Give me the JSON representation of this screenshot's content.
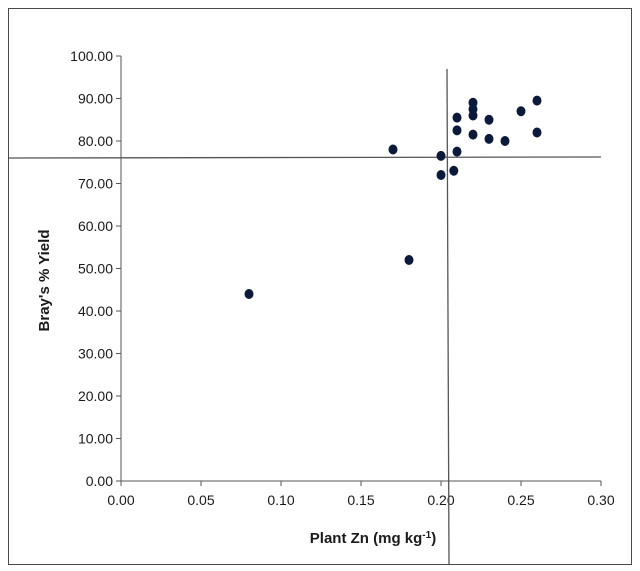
{
  "chart_data": {
    "type": "scatter",
    "xlabel": "Plant Zn (mg kg",
    "xlabel_sup": "-1",
    "xlabel_close": ")",
    "ylabel": "Bray's % Yield",
    "xlim": [
      0.0,
      0.3
    ],
    "ylim": [
      0.0,
      100.0
    ],
    "x_ticks": [
      "0.00",
      "0.05",
      "0.10",
      "0.15",
      "0.20",
      "0.25",
      "0.30"
    ],
    "y_ticks": [
      "0.00",
      "10.00",
      "20.00",
      "30.00",
      "40.00",
      "50.00",
      "60.00",
      "70.00",
      "80.00",
      "90.00",
      "100.00"
    ],
    "grid": false,
    "marker_color": "#0b1a3a",
    "points": [
      {
        "x": 0.08,
        "y": 44.0
      },
      {
        "x": 0.17,
        "y": 78.0
      },
      {
        "x": 0.18,
        "y": 52.0
      },
      {
        "x": 0.2,
        "y": 76.5
      },
      {
        "x": 0.2,
        "y": 72.0
      },
      {
        "x": 0.208,
        "y": 73.0
      },
      {
        "x": 0.21,
        "y": 77.5
      },
      {
        "x": 0.21,
        "y": 82.5
      },
      {
        "x": 0.21,
        "y": 85.5
      },
      {
        "x": 0.22,
        "y": 81.5
      },
      {
        "x": 0.22,
        "y": 86.0
      },
      {
        "x": 0.22,
        "y": 87.5
      },
      {
        "x": 0.22,
        "y": 89.0
      },
      {
        "x": 0.23,
        "y": 80.5
      },
      {
        "x": 0.23,
        "y": 85.0
      },
      {
        "x": 0.24,
        "y": 80.0
      },
      {
        "x": 0.25,
        "y": 87.0
      },
      {
        "x": 0.26,
        "y": 89.5
      },
      {
        "x": 0.26,
        "y": 82.0
      }
    ],
    "reference_lines": {
      "horizontal_y": 76.0,
      "vertical_x": 0.205
    }
  }
}
